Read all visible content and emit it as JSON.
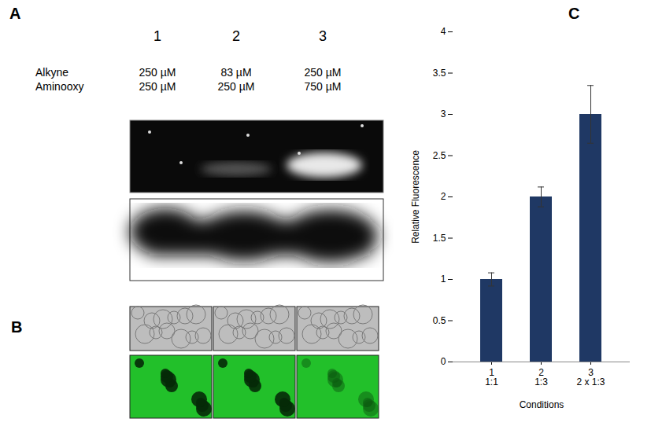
{
  "panel_labels": [
    "A",
    "B",
    "C"
  ],
  "blot": {
    "lanes": [
      "1",
      "2",
      "3"
    ],
    "conditions": [
      {
        "name": "Alkyne",
        "values": [
          "250 µM",
          "83 µM",
          "250 µM"
        ]
      },
      {
        "name": "Aminooxy",
        "values": [
          "250 µM",
          "250 µM",
          "750 µM"
        ]
      }
    ]
  },
  "chart_data": {
    "type": "bar",
    "categories": [
      "1\n1:1",
      "2\n1:3",
      "3\n2 x 1:3"
    ],
    "values": [
      1,
      2,
      3
    ],
    "errors": [
      0.08,
      0.12,
      0.35
    ],
    "color": "#1f3864",
    "xlabel": "Conditions",
    "ylabel": "Relative Fluorescence",
    "ylim": [
      0,
      4
    ],
    "yticks": [
      0,
      0.5,
      1,
      1.5,
      2,
      2.5,
      3,
      3.5,
      4
    ],
    "grid": false
  }
}
